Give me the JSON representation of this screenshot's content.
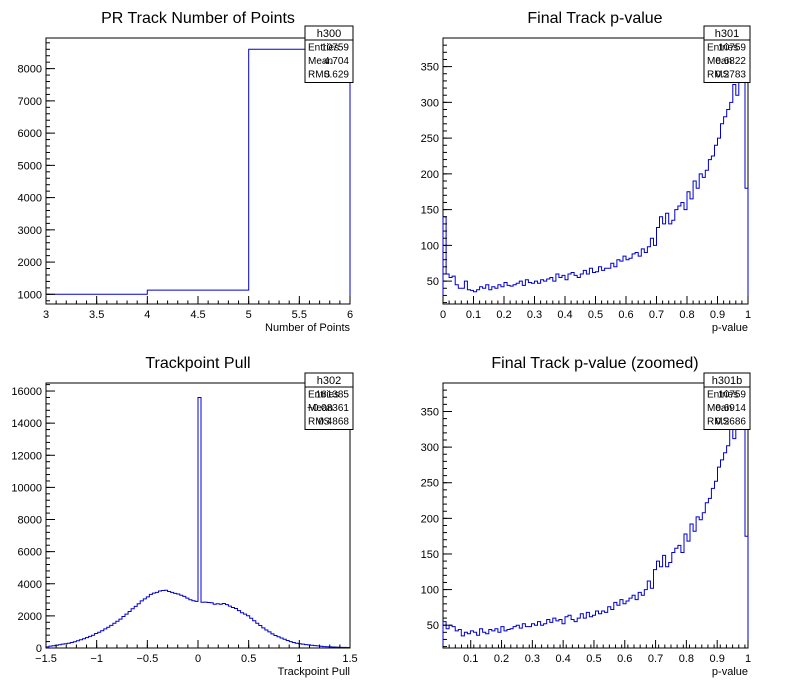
{
  "chart_data": [
    {
      "type": "histogram-step",
      "title": "PR Track Number of Points",
      "xlabel": "Number of Points",
      "ylabel": "",
      "xlim": [
        3,
        6
      ],
      "ylim": [
        700,
        8950
      ],
      "xticks": [
        "3",
        "3.5",
        "4",
        "4.5",
        "5",
        "5.5",
        "6"
      ],
      "yticks": [
        "1000",
        "2000",
        "3000",
        "4000",
        "5000",
        "6000",
        "7000",
        "8000"
      ],
      "bins": {
        "xmin": 3,
        "xmax": 6,
        "values": [
          1000,
          1130,
          8600
        ]
      },
      "stats": {
        "name": "h300",
        "entries_label": "Entries",
        "entries": "10759",
        "mean_label": "Mean",
        "mean": "4.704",
        "rms_label": "RMS",
        "rms": "0.629"
      },
      "line_color": "#0000cc",
      "grid": false
    },
    {
      "type": "histogram-step",
      "title": "Final Track p-value",
      "xlabel": "p-value",
      "ylabel": "",
      "xlim": [
        0,
        1
      ],
      "ylim": [
        18,
        390
      ],
      "xticks": [
        "0",
        "0.1",
        "0.2",
        "0.3",
        "0.4",
        "0.5",
        "0.6",
        "0.7",
        "0.8",
        "0.9",
        "1"
      ],
      "yticks": [
        "50",
        "100",
        "150",
        "200",
        "250",
        "300",
        "350"
      ],
      "bins": {
        "xmin": 0,
        "xmax": 1,
        "values": [
          140,
          60,
          55,
          57,
          45,
          40,
          40,
          50,
          38,
          37,
          35,
          38,
          42,
          40,
          45,
          38,
          42,
          40,
          45,
          42,
          48,
          44,
          43,
          45,
          47,
          50,
          44,
          52,
          48,
          47,
          50,
          47,
          52,
          50,
          53,
          55,
          50,
          60,
          55,
          58,
          52,
          60,
          62,
          58,
          55,
          60,
          65,
          60,
          68,
          62,
          63,
          70,
          65,
          68,
          68,
          75,
          70,
          80,
          78,
          85,
          80,
          82,
          88,
          90,
          85,
          95,
          90,
          98,
          110,
          100,
          125,
          140,
          130,
          145,
          130,
          135,
          150,
          155,
          160,
          150,
          175,
          165,
          190,
          180,
          200,
          195,
          205,
          220,
          225,
          240,
          250,
          270,
          280,
          290,
          300,
          325,
          310,
          350,
          330,
          180
        ]
      },
      "stats": {
        "name": "h301",
        "entries_label": "Entries",
        "entries": "10759",
        "mean_label": "Mean",
        "mean": "0.6822",
        "rms_label": "RMS",
        "rms": "0.2783"
      },
      "line_color": "#0000cc",
      "grid": false
    },
    {
      "type": "histogram-step",
      "title": "Trackpoint Pull",
      "xlabel": "Trackpoint Pull",
      "ylabel": "",
      "xlim": [
        -1.5,
        1.5
      ],
      "ylim": [
        0,
        16500
      ],
      "xticks": [
        "−1.5",
        "−1",
        "−0.5",
        "0",
        "0.5",
        "1",
        "1.5"
      ],
      "yticks": [
        "0",
        "2000",
        "4000",
        "6000",
        "8000",
        "10000",
        "12000",
        "14000",
        "16000"
      ],
      "bins": {
        "xmin": -1.5,
        "xmax": 1.5,
        "values": [
          70,
          120,
          145,
          170,
          200,
          240,
          270,
          300,
          340,
          390,
          450,
          510,
          570,
          650,
          720,
          800,
          900,
          980,
          1070,
          1190,
          1290,
          1410,
          1540,
          1660,
          1800,
          1960,
          2110,
          2270,
          2440,
          2590,
          2760,
          2930,
          3060,
          3180,
          3340,
          3420,
          3460,
          3550,
          3580,
          3590,
          3520,
          3460,
          3400,
          3360,
          3290,
          3210,
          3110,
          3000,
          2940,
          2900,
          15600,
          2850,
          2860,
          2830,
          2820,
          2720,
          2760,
          2730,
          2770,
          2700,
          2610,
          2520,
          2460,
          2330,
          2200,
          2110,
          2010,
          1850,
          1700,
          1540,
          1400,
          1250,
          1120,
          1000,
          880,
          780,
          700,
          620,
          540,
          470,
          400,
          340,
          300,
          270,
          240,
          210,
          190,
          170,
          150,
          130,
          110,
          90,
          80,
          70,
          60,
          55,
          50,
          40,
          35,
          30
        ]
      },
      "stats": {
        "name": "h302",
        "entries_label": "Entries",
        "entries": "161385",
        "mean_label": "Mean",
        "mean": "−0.08361",
        "rms_label": "RMS",
        "rms": "0.4868"
      },
      "line_color": "#0000cc",
      "grid": false
    },
    {
      "type": "histogram-step",
      "title": "Final Track p-value (zoomed)",
      "xlabel": "p-value",
      "ylabel": "",
      "xlim": [
        0.01,
        1
      ],
      "ylim": [
        18,
        390
      ],
      "xticks": [
        "0.1",
        "0.2",
        "0.3",
        "0.4",
        "0.5",
        "0.6",
        "0.7",
        "0.8",
        "0.9",
        "1"
      ],
      "yticks": [
        "50",
        "100",
        "150",
        "200",
        "250",
        "300",
        "350"
      ],
      "bins": {
        "xmin": 0.01,
        "xmax": 1,
        "values": [
          55,
          45,
          50,
          48,
          42,
          44,
          35,
          40,
          38,
          42,
          40,
          36,
          45,
          40,
          38,
          44,
          42,
          45,
          40,
          48,
          42,
          44,
          45,
          48,
          50,
          46,
          52,
          48,
          48,
          52,
          50,
          55,
          50,
          52,
          58,
          54,
          60,
          56,
          58,
          52,
          62,
          64,
          58,
          55,
          60,
          66,
          60,
          68,
          62,
          64,
          70,
          66,
          70,
          68,
          76,
          72,
          82,
          78,
          86,
          80,
          84,
          88,
          92,
          86,
          96,
          92,
          100,
          112,
          102,
          128,
          140,
          132,
          148,
          132,
          138,
          152,
          158,
          162,
          152,
          178,
          168,
          192,
          182,
          202,
          198,
          208,
          222,
          228,
          242,
          252,
          272,
          282,
          292,
          302,
          325,
          312,
          350,
          330,
          360,
          175
        ]
      },
      "stats": {
        "name": "h301b",
        "entries_label": "Entries",
        "entries": "10759",
        "mean_label": "Mean",
        "mean": "0.6914",
        "rms_label": "RMS",
        "rms": "0.2686"
      },
      "line_color": "#0000cc",
      "grid": false
    }
  ]
}
